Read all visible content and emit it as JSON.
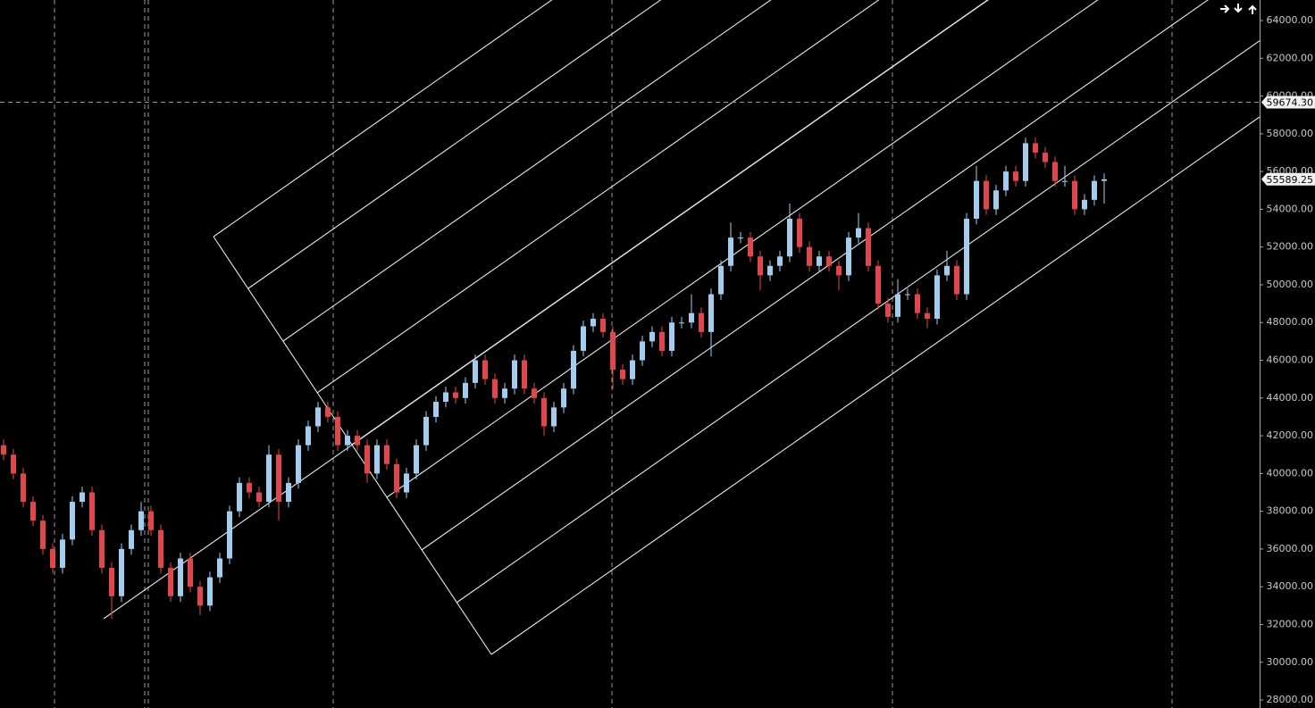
{
  "chart_data": {
    "type": "candlestick",
    "up_color": "#a3cdef",
    "down_color": "#e0474c",
    "ylim": [
      27576,
      65088
    ],
    "yticks": [
      {
        "value": 28000,
        "label": "28000.00"
      },
      {
        "value": 30000,
        "label": "30000.00"
      },
      {
        "value": 32000,
        "label": "32000.00"
      },
      {
        "value": 34000,
        "label": "34000.00"
      },
      {
        "value": 36000,
        "label": "36000.00"
      },
      {
        "value": 38000,
        "label": "38000.00"
      },
      {
        "value": 40000,
        "label": "40000.00"
      },
      {
        "value": 42000,
        "label": "42000.00"
      },
      {
        "value": 44000,
        "label": "44000.00"
      },
      {
        "value": 46000,
        "label": "46000.00"
      },
      {
        "value": 48000,
        "label": "48000.00"
      },
      {
        "value": 50000,
        "label": "50000.00"
      },
      {
        "value": 52000,
        "label": "52000.00"
      },
      {
        "value": 54000,
        "label": "54000.00"
      },
      {
        "value": 56000,
        "label": "56000.00"
      },
      {
        "value": 58000,
        "label": "58000.00"
      },
      {
        "value": 60000,
        "label": "60000.00"
      },
      {
        "value": 62000,
        "label": "62000.00"
      },
      {
        "value": 64000,
        "label": "64000.00"
      }
    ],
    "crosshair": {
      "value": 59674.3,
      "label": "59674.30"
    },
    "last_price": {
      "value": 55589.25,
      "label": "55589.25"
    },
    "candles": [
      [
        41500,
        41800,
        40700,
        41000
      ],
      [
        41000,
        41300,
        39700,
        40000
      ],
      [
        40000,
        40300,
        38200,
        38500
      ],
      [
        38500,
        38800,
        37200,
        37500
      ],
      [
        37500,
        37800,
        35700,
        36000
      ],
      [
        36000,
        36300,
        34700,
        35000
      ],
      [
        35000,
        36800,
        34700,
        36500
      ],
      [
        36500,
        38800,
        36200,
        38500
      ],
      [
        38500,
        39300,
        38200,
        39000
      ],
      [
        39000,
        39300,
        36700,
        37000
      ],
      [
        37000,
        37300,
        34700,
        35000
      ],
      [
        35000,
        35300,
        32300,
        33500
      ],
      [
        33500,
        36300,
        33200,
        36000
      ],
      [
        36000,
        37300,
        35700,
        37000
      ],
      [
        37000,
        38500,
        36700,
        38000
      ],
      [
        38000,
        38300,
        36700,
        37000
      ],
      [
        37000,
        37300,
        34700,
        35000
      ],
      [
        35000,
        35300,
        33200,
        33500
      ],
      [
        33500,
        35800,
        33200,
        35500
      ],
      [
        35500,
        35800,
        33700,
        34000
      ],
      [
        34000,
        34300,
        32500,
        33000
      ],
      [
        33000,
        34800,
        32700,
        34500
      ],
      [
        34500,
        35800,
        34200,
        35500
      ],
      [
        35500,
        38300,
        35200,
        38000
      ],
      [
        38000,
        39800,
        37700,
        39500
      ],
      [
        39500,
        39800,
        38700,
        39000
      ],
      [
        39000,
        39300,
        38200,
        38500
      ],
      [
        38500,
        41500,
        38200,
        41000
      ],
      [
        41000,
        41300,
        37500,
        38500
      ],
      [
        38500,
        39800,
        38200,
        39500
      ],
      [
        39500,
        41800,
        39200,
        41500
      ],
      [
        41500,
        42800,
        41200,
        42500
      ],
      [
        42500,
        43800,
        42200,
        43500
      ],
      [
        43500,
        43800,
        42700,
        43000
      ],
      [
        43000,
        43300,
        41200,
        41500
      ],
      [
        41500,
        42300,
        41200,
        42000
      ],
      [
        42000,
        42300,
        41200,
        41500
      ],
      [
        41500,
        41800,
        39500,
        40000
      ],
      [
        40000,
        41800,
        39700,
        41500
      ],
      [
        41500,
        41800,
        40200,
        40500
      ],
      [
        40500,
        40800,
        38700,
        39000
      ],
      [
        39000,
        40300,
        38700,
        40000
      ],
      [
        40000,
        41800,
        39700,
        41500
      ],
      [
        41500,
        43300,
        41200,
        43000
      ],
      [
        43000,
        44100,
        42700,
        43800
      ],
      [
        43800,
        44600,
        43500,
        44300
      ],
      [
        44300,
        44600,
        43700,
        44000
      ],
      [
        44000,
        45100,
        43700,
        44800
      ],
      [
        44800,
        46300,
        44500,
        46000
      ],
      [
        46000,
        46300,
        44700,
        45000
      ],
      [
        45000,
        45300,
        43700,
        44000
      ],
      [
        44000,
        44800,
        43700,
        44500
      ],
      [
        44500,
        46300,
        44200,
        46000
      ],
      [
        46000,
        46300,
        44200,
        44500
      ],
      [
        44500,
        44800,
        43700,
        44000
      ],
      [
        44000,
        44300,
        42000,
        42500
      ],
      [
        42500,
        43800,
        42200,
        43500
      ],
      [
        43500,
        44800,
        43200,
        44500
      ],
      [
        44500,
        46800,
        44200,
        46500
      ],
      [
        46500,
        48100,
        46200,
        47800
      ],
      [
        47800,
        48500,
        47500,
        48200
      ],
      [
        48200,
        48500,
        47200,
        47500
      ],
      [
        47500,
        47800,
        44500,
        45500
      ],
      [
        45500,
        45800,
        44700,
        45000
      ],
      [
        45000,
        46300,
        44700,
        46000
      ],
      [
        46000,
        47300,
        45700,
        47000
      ],
      [
        47000,
        47800,
        46700,
        47500
      ],
      [
        47500,
        47800,
        46200,
        46500
      ],
      [
        46500,
        48300,
        46200,
        48000
      ],
      [
        48000,
        48300,
        47700,
        48000
      ],
      [
        48000,
        49500,
        47700,
        48500
      ],
      [
        48500,
        48800,
        47200,
        47500
      ],
      [
        47500,
        49800,
        46200,
        49500
      ],
      [
        49500,
        51300,
        49200,
        51000
      ],
      [
        51000,
        53300,
        50700,
        52500
      ],
      [
        52500,
        52800,
        52200,
        52500
      ],
      [
        52500,
        52800,
        51200,
        51500
      ],
      [
        51500,
        51800,
        49700,
        50500
      ],
      [
        50500,
        51300,
        50200,
        51000
      ],
      [
        51000,
        51800,
        50700,
        51500
      ],
      [
        51500,
        54300,
        51200,
        53500
      ],
      [
        53500,
        53800,
        51700,
        52000
      ],
      [
        52000,
        52300,
        50700,
        51000
      ],
      [
        51000,
        51800,
        50700,
        51500
      ],
      [
        51500,
        51800,
        50700,
        51000
      ],
      [
        51000,
        51300,
        49700,
        50500
      ],
      [
        50500,
        52800,
        50200,
        52500
      ],
      [
        52500,
        53800,
        52200,
        53000
      ],
      [
        53000,
        53300,
        50700,
        51000
      ],
      [
        51000,
        51300,
        48700,
        49000
      ],
      [
        49000,
        49300,
        48000,
        48300
      ],
      [
        48300,
        50300,
        48000,
        49500
      ],
      [
        49500,
        49800,
        49200,
        49500
      ],
      [
        49500,
        49800,
        48200,
        48500
      ],
      [
        48500,
        48800,
        47700,
        48200
      ],
      [
        48200,
        50800,
        47900,
        50500
      ],
      [
        50500,
        51800,
        50200,
        51000
      ],
      [
        51000,
        51300,
        49200,
        49500
      ],
      [
        49500,
        53800,
        49200,
        53500
      ],
      [
        53500,
        56300,
        53200,
        55500
      ],
      [
        55500,
        55800,
        53700,
        54000
      ],
      [
        54000,
        55300,
        53700,
        55000
      ],
      [
        55000,
        56300,
        54700,
        56000
      ],
      [
        56000,
        56300,
        55200,
        55500
      ],
      [
        55500,
        57800,
        55200,
        57500
      ],
      [
        57500,
        57800,
        56700,
        57000
      ],
      [
        57000,
        57300,
        56200,
        56500
      ],
      [
        56500,
        56800,
        55200,
        55500
      ],
      [
        55500,
        56300,
        55200,
        55500
      ],
      [
        55500,
        55800,
        53700,
        54000
      ],
      [
        54000,
        54800,
        53700,
        54500
      ],
      [
        54500,
        55800,
        54200,
        55500
      ],
      [
        55500,
        55900,
        54300,
        55589.25
      ]
    ]
  }
}
